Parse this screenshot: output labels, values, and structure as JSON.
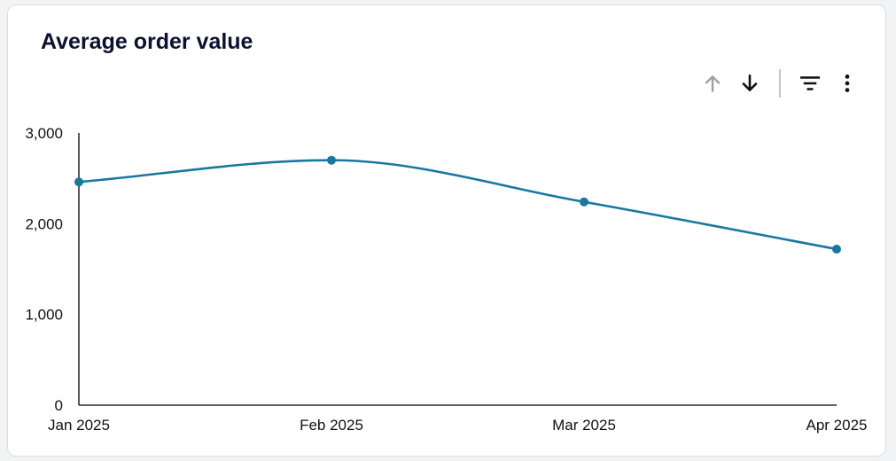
{
  "card": {
    "title": "Average order value"
  },
  "toolbar": {
    "icons": [
      "arrow-up-icon",
      "arrow-down-icon",
      "filter-icon",
      "more-vert-icon"
    ]
  },
  "colors": {
    "line": "#1878a0",
    "axis": "#000000",
    "arrow_up_disabled": "#9aa0a6",
    "arrow_down": "#111111"
  },
  "chart_data": {
    "type": "line",
    "categories": [
      "Jan 2025",
      "Feb 2025",
      "Mar 2025",
      "Apr 2025"
    ],
    "series": [
      {
        "values": [
          2460,
          2700,
          2240,
          1720
        ]
      }
    ],
    "ylim": [
      0,
      3000
    ],
    "yticks": [
      0,
      1000,
      2000,
      3000
    ],
    "ytick_labels": [
      "0",
      "1,000",
      "2,000",
      "3,000"
    ],
    "smooth": true,
    "markers": true,
    "grid": false
  }
}
